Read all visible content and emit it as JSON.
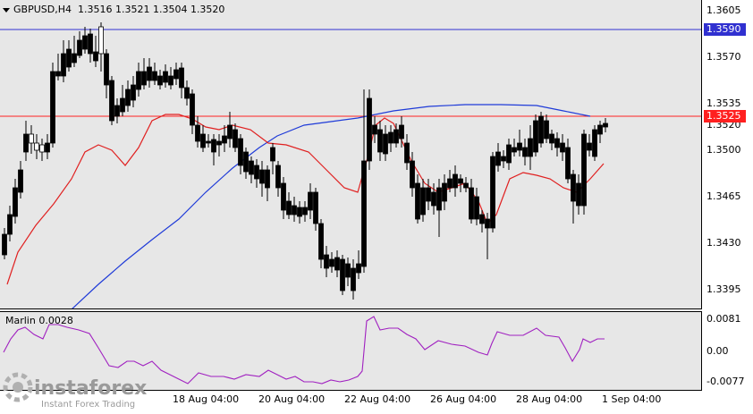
{
  "header": {
    "symbol_label": "GBPUSD,H4",
    "ohlc": "1.3516 1.3521 1.3504 1.3520"
  },
  "price_axis": {
    "ticks": [
      "1.3605",
      "1.3570",
      "1.3535",
      "1.3500",
      "1.3465",
      "1.3430",
      "1.3395"
    ],
    "current_price_tag_partial": "1.3520",
    "blue_level_tag": "1.3590",
    "red_level_tag": "1.3525"
  },
  "oscillator": {
    "label": "Marlin 0.0028",
    "ticks": [
      "0.0081",
      "0.00",
      "-0.0077"
    ]
  },
  "time_axis": {
    "labels": [
      "18 Aug 04:00",
      "20 Aug 04:00",
      "22 Aug 04:00",
      "26 Aug 04:00",
      "28 Aug 04:00",
      "1 Sep 04:00"
    ]
  },
  "watermark": {
    "brand": "instaforex",
    "tagline": "Instant Forex Trading"
  },
  "colors": {
    "background": "#e7e7e7",
    "blue_level": "#3030d0",
    "red_level": "#ff2020",
    "ma_fast": "#e02020",
    "ma_slow": "#1f3bd8",
    "oscillator_line": "#a020c0"
  }
}
